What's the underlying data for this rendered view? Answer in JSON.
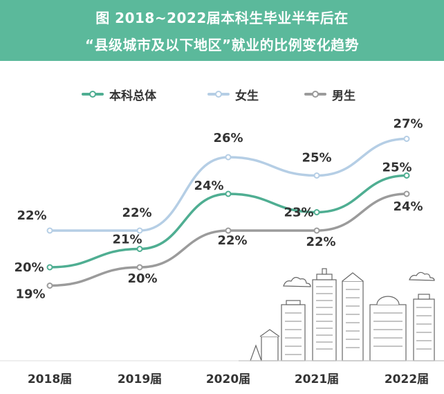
{
  "header": {
    "title_line1": "图  2018~2022届本科生毕业半年后在",
    "title_line2": "“县级城市及以下地区”就业的比例变化趋势"
  },
  "colors": {
    "header_bg": "#5bb99b",
    "total": "#4fae92",
    "female": "#b5cee5",
    "male": "#9b9b9b"
  },
  "chart_data": {
    "type": "line",
    "title": "图  2018~2022届本科生毕业半年后在“县级城市及以下地区”就业的比例变化趋势",
    "categories": [
      "2018届",
      "2019届",
      "2020届",
      "2021届",
      "2022届"
    ],
    "unit": "%",
    "series": [
      {
        "name": "本科总体",
        "values": [
          20,
          21,
          24,
          23,
          25
        ],
        "labels": [
          "20%",
          "21%",
          "24%",
          "23%",
          "25%"
        ]
      },
      {
        "name": "女生",
        "values": [
          22,
          22,
          26,
          25,
          27
        ],
        "labels": [
          "22%",
          "22%",
          "26%",
          "25%",
          "27%"
        ]
      },
      {
        "name": "男生",
        "values": [
          19,
          20,
          22,
          22,
          24
        ],
        "labels": [
          "19%",
          "20%",
          "22%",
          "22%",
          "24%"
        ]
      }
    ],
    "legend_position": "top-center",
    "grid": false,
    "decoration": "city skyline illustration"
  }
}
